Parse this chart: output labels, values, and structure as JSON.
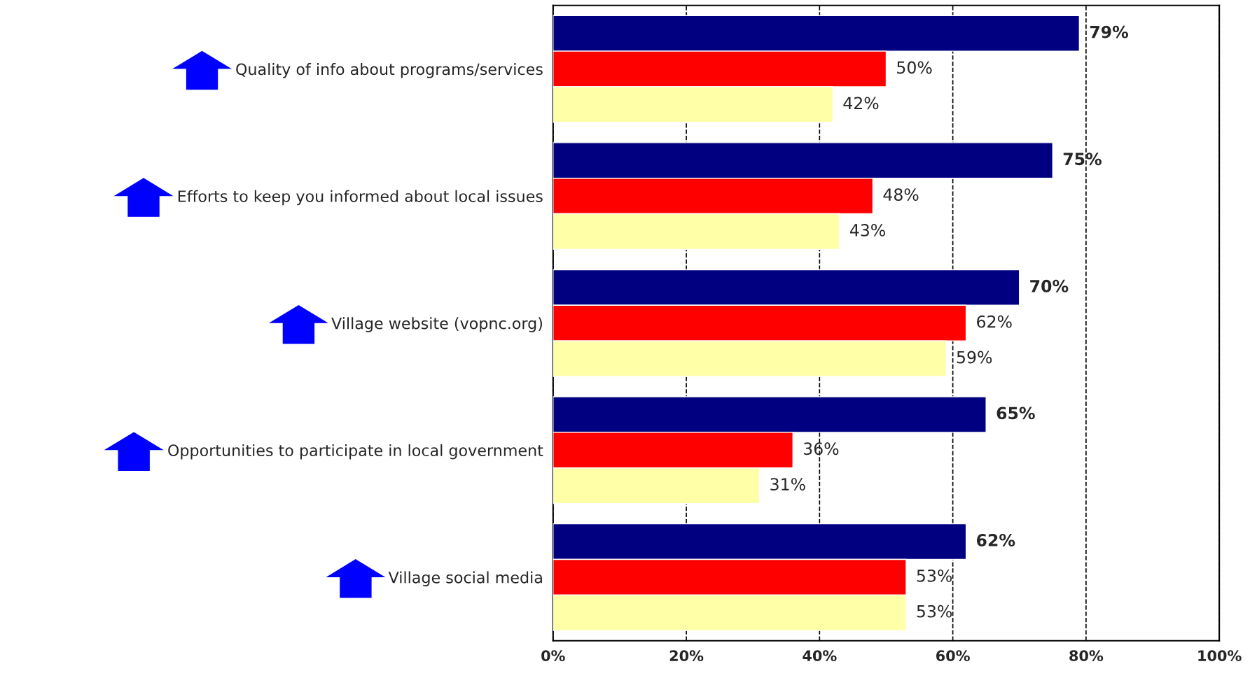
{
  "chart_data": {
    "type": "bar",
    "orientation": "horizontal",
    "categories": [
      "Quality of info about programs/services",
      "Efforts to keep you informed about local issues",
      "Village website (vopnc.org)",
      "Opportunities to participate in local government",
      "Village social media"
    ],
    "series": [
      {
        "color": "#000080",
        "values": [
          79,
          75,
          70,
          65,
          62
        ],
        "value_labels": [
          "79%",
          "75%",
          "70%",
          "65%",
          "62%"
        ]
      },
      {
        "color": "#ff0000",
        "values": [
          50,
          48,
          62,
          36,
          53
        ],
        "value_labels": [
          "50%",
          "48%",
          "62%",
          "36%",
          "53%"
        ]
      },
      {
        "color": "#ffffa8",
        "values": [
          42,
          43,
          59,
          31,
          53
        ],
        "value_labels": [
          "42%",
          "43%",
          "59%",
          "31%",
          "53%"
        ]
      }
    ],
    "xlim": [
      0,
      100
    ],
    "xticks": [
      {
        "value": 0,
        "label": "0%"
      },
      {
        "value": 20,
        "label": "20%"
      },
      {
        "value": 40,
        "label": "40%"
      },
      {
        "value": 60,
        "label": "60%"
      },
      {
        "value": 80,
        "label": "80%"
      },
      {
        "value": 100,
        "label": "100%"
      }
    ],
    "grid": "x",
    "line_style": "dashed",
    "legend": false
  }
}
